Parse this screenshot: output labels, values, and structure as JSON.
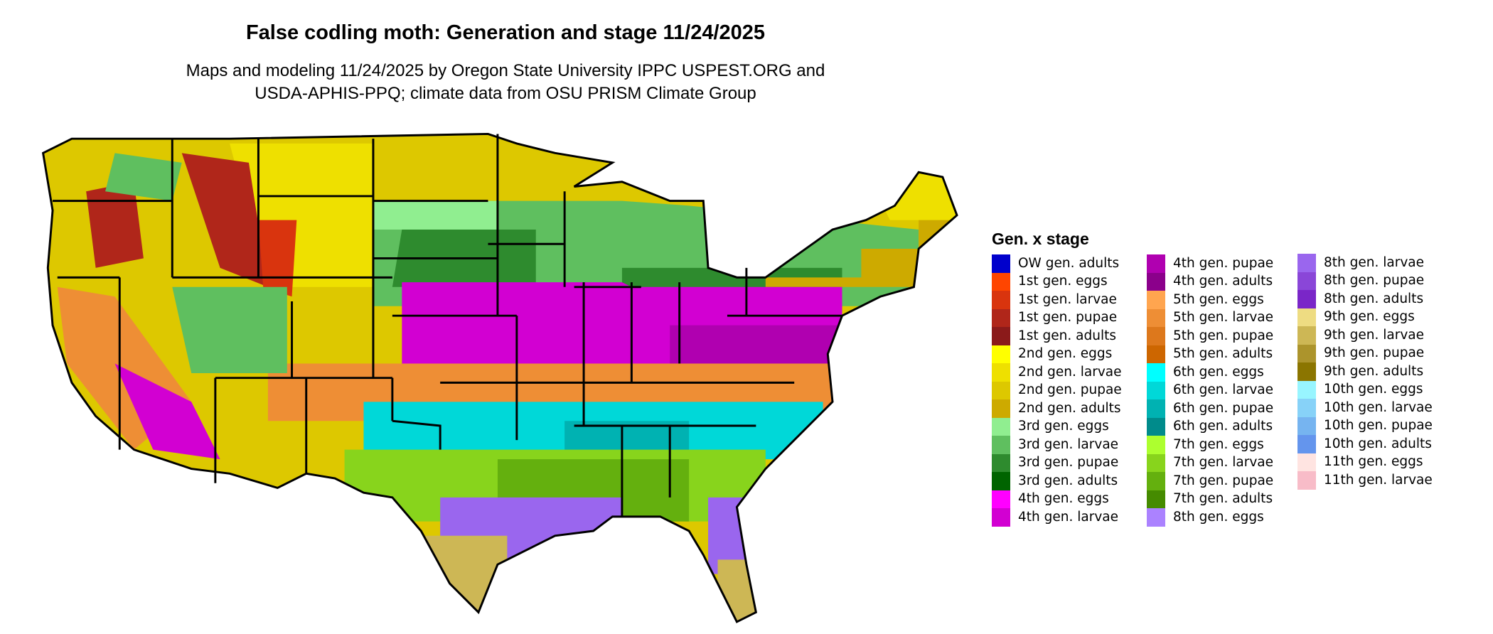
{
  "title": "False codling moth: Generation and stage 11/24/2025",
  "subtitle_line1": "Maps and modeling 11/24/2025 by Oregon State University IPPC USPEST.ORG and",
  "subtitle_line2": "USDA-APHIS-PPQ; climate data from OSU PRISM Climate Group",
  "legend": {
    "title": "Gen. x stage",
    "items": [
      {
        "label": "OW gen. adults",
        "color": "#0000cc"
      },
      {
        "label": "1st gen. eggs",
        "color": "#ff4500"
      },
      {
        "label": "1st gen. larvae",
        "color": "#d9340e"
      },
      {
        "label": "1st gen. pupae",
        "color": "#b0261a"
      },
      {
        "label": "1st gen. adults",
        "color": "#8b1a1a"
      },
      {
        "label": "2nd gen. eggs",
        "color": "#ffff00"
      },
      {
        "label": "2nd gen. larvae",
        "color": "#eee000"
      },
      {
        "label": "2nd gen. pupae",
        "color": "#ddc800"
      },
      {
        "label": "2nd gen. adults",
        "color": "#cdaa00"
      },
      {
        "label": "3rd gen. eggs",
        "color": "#90ee90"
      },
      {
        "label": "3rd gen. larvae",
        "color": "#5fbf5f"
      },
      {
        "label": "3rd gen. pupae",
        "color": "#2e8b2e"
      },
      {
        "label": "3rd gen. adults",
        "color": "#006400"
      },
      {
        "label": "4th gen. eggs",
        "color": "#ff00ff"
      },
      {
        "label": "4th gen. larvae",
        "color": "#d200d2"
      },
      {
        "label": "4th gen. pupae",
        "color": "#b000b0"
      },
      {
        "label": "4th gen. adults",
        "color": "#8b008b"
      },
      {
        "label": "5th gen. eggs",
        "color": "#ffa54f"
      },
      {
        "label": "5th gen. larvae",
        "color": "#ee8e35"
      },
      {
        "label": "5th gen. pupae",
        "color": "#dd781c"
      },
      {
        "label": "5th gen. adults",
        "color": "#cd6600"
      },
      {
        "label": "6th gen. eggs",
        "color": "#00ffff"
      },
      {
        "label": "6th gen. larvae",
        "color": "#00d8d8"
      },
      {
        "label": "6th gen. pupae",
        "color": "#00b2b2"
      },
      {
        "label": "6th gen. adults",
        "color": "#008b8b"
      },
      {
        "label": "7th gen. eggs",
        "color": "#adff2f"
      },
      {
        "label": "7th gen. larvae",
        "color": "#88d41c"
      },
      {
        "label": "7th gen. pupae",
        "color": "#64b00e"
      },
      {
        "label": "7th gen. adults",
        "color": "#458b00"
      },
      {
        "label": "8th gen. eggs",
        "color": "#ab82ff"
      },
      {
        "label": "8th gen. larvae",
        "color": "#9a66ee"
      },
      {
        "label": "8th gen. pupae",
        "color": "#8a46d8"
      },
      {
        "label": "8th gen. adults",
        "color": "#7a26c8"
      },
      {
        "label": "9th gen. eggs",
        "color": "#eedc82"
      },
      {
        "label": "9th gen. larvae",
        "color": "#cdb755"
      },
      {
        "label": "9th gen. pupae",
        "color": "#ac942c"
      },
      {
        "label": "9th gen. adults",
        "color": "#8b7500"
      },
      {
        "label": "10th gen. eggs",
        "color": "#98f5ff"
      },
      {
        "label": "10th gen. larvae",
        "color": "#87d2f8"
      },
      {
        "label": "10th gen. pupae",
        "color": "#76b4f0"
      },
      {
        "label": "10th gen. adults",
        "color": "#6495ed"
      },
      {
        "label": "11th gen. eggs",
        "color": "#ffe4e1"
      },
      {
        "label": "11th gen. larvae",
        "color": "#f8bcc8"
      }
    ]
  }
}
